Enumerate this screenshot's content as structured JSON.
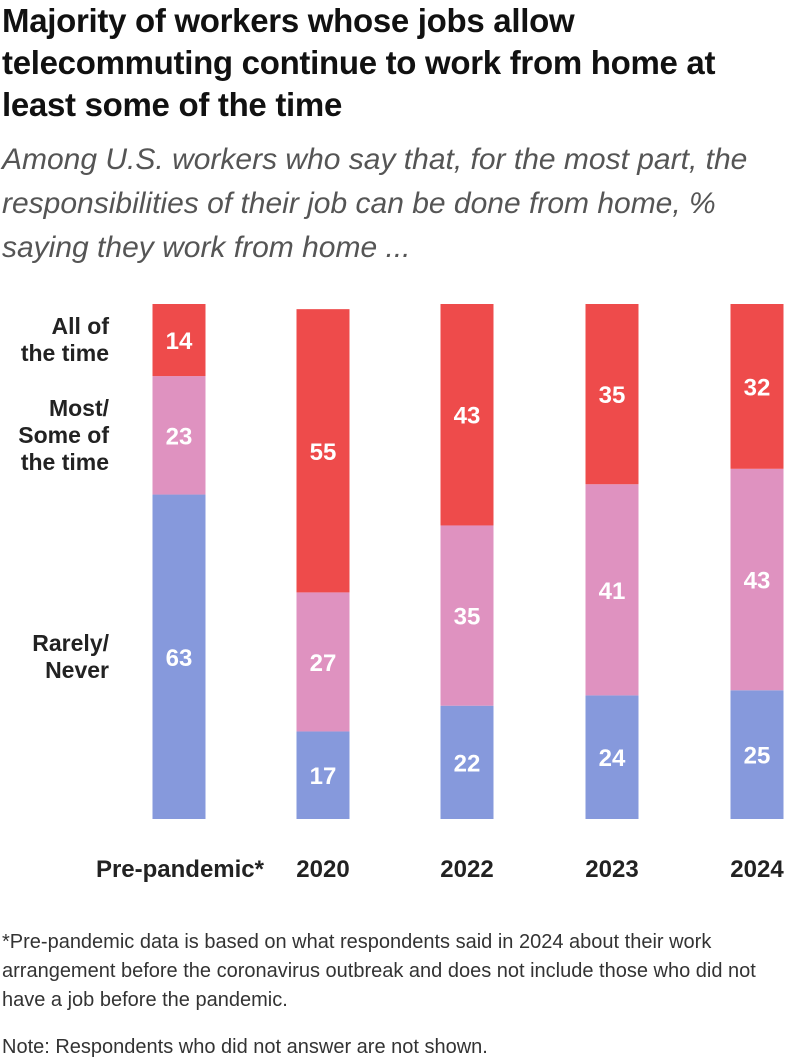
{
  "title": "Majority of workers whose jobs allow telecommuting continue to work from home at least some of the time",
  "subtitle": "Among U.S. workers who say that, for the most part, the responsibilities of their job can be done from home, % saying they work from home ...",
  "footnote": "*Pre-pandemic data is based on what respondents said in 2024 about their work arrangement before the coronavirus outbreak and does not include those who did not have a job before the pandemic.",
  "note": "Note: Respondents who did not answer are not shown.",
  "chart_data": {
    "type": "bar",
    "stacked": true,
    "orientation": "vertical",
    "categories": [
      "Pre-pandemic*",
      "2020",
      "2022",
      "2023",
      "2024"
    ],
    "series": [
      {
        "name": "Rarely/ Never",
        "label_lines": [
          "Rarely/",
          "Never"
        ],
        "color": "#8699dc",
        "values": [
          63,
          17,
          22,
          24,
          25
        ]
      },
      {
        "name": "Most/ Some of the time",
        "label_lines": [
          "Most/",
          "Some of",
          "the time"
        ],
        "color": "#df92c0",
        "values": [
          23,
          27,
          35,
          41,
          43
        ]
      },
      {
        "name": "All of the time",
        "label_lines": [
          "All of",
          "the time"
        ],
        "color": "#ee4b4b",
        "values": [
          14,
          55,
          43,
          35,
          32
        ]
      }
    ],
    "value_labels": true,
    "grid": false,
    "legend": "left, inline labels beside first bar"
  }
}
